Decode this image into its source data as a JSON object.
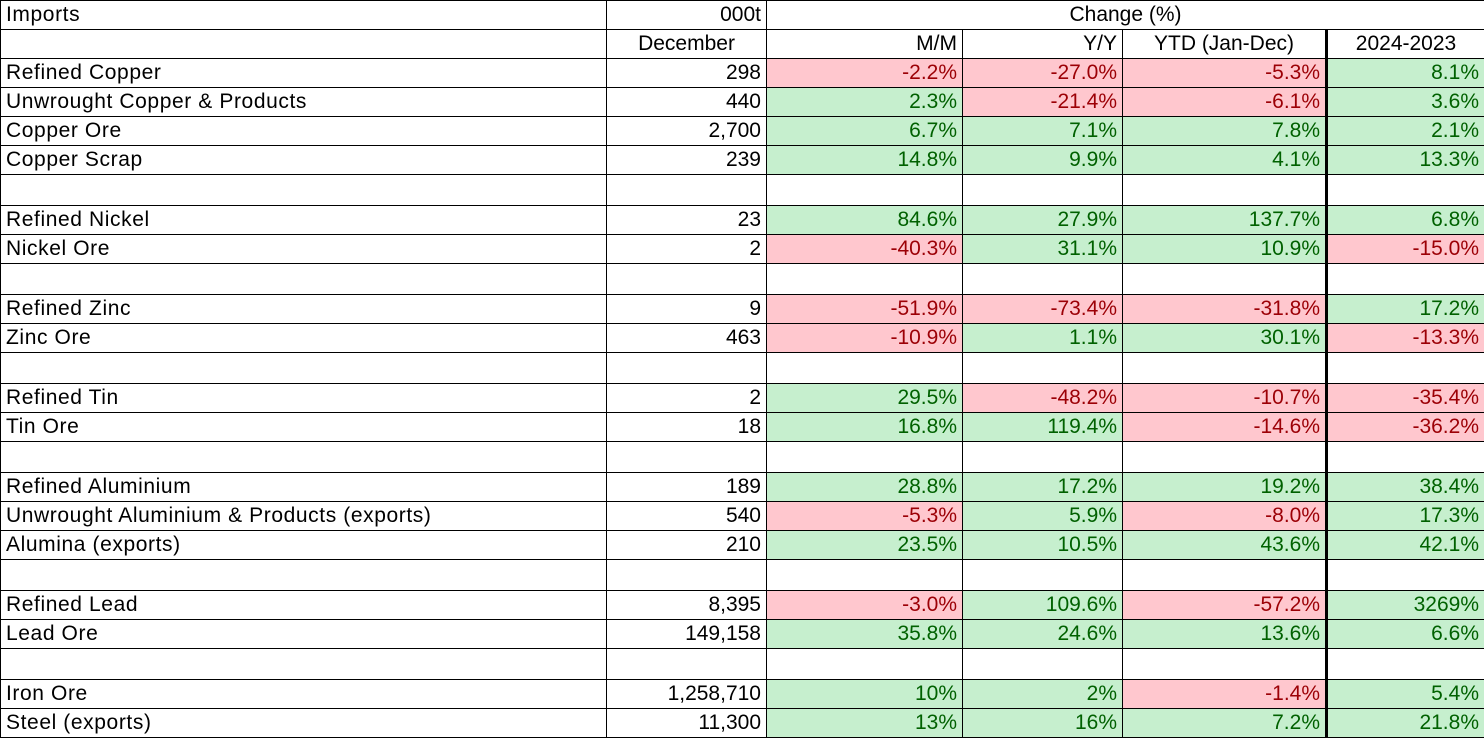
{
  "chart_data": {
    "type": "table",
    "header_row1": {
      "label": "Imports",
      "unit": "000t",
      "change": "Change (%)"
    },
    "header_row2": [
      "",
      "December",
      "M/M",
      "Y/Y",
      "YTD (Jan-Dec)",
      "2024-2023"
    ],
    "columns": [
      "",
      "December",
      "M/M",
      "Y/Y",
      "YTD (Jan-Dec)",
      "2024-2023"
    ],
    "rows": [
      {
        "label": "Refined Copper",
        "december": "298",
        "mm": "-2.2%",
        "yy": "-27.0%",
        "ytd": "-5.3%",
        "y2024_2023": "8.1%"
      },
      {
        "label": "Unwrought Copper & Products",
        "december": "440",
        "mm": "2.3%",
        "yy": "-21.4%",
        "ytd": "-6.1%",
        "y2024_2023": "3.6%"
      },
      {
        "label": "Copper Ore",
        "december": "2,700",
        "mm": "6.7%",
        "yy": "7.1%",
        "ytd": "7.8%",
        "y2024_2023": "2.1%"
      },
      {
        "label": "Copper Scrap",
        "december": "239",
        "mm": "14.8%",
        "yy": "9.9%",
        "ytd": "4.1%",
        "y2024_2023": "13.3%"
      },
      {
        "blank": true
      },
      {
        "label": "Refined Nickel",
        "december": "23",
        "mm": "84.6%",
        "yy": "27.9%",
        "ytd": "137.7%",
        "y2024_2023": "6.8%"
      },
      {
        "label": "Nickel Ore",
        "december": "2",
        "mm": "-40.3%",
        "yy": "31.1%",
        "ytd": "10.9%",
        "y2024_2023": "-15.0%"
      },
      {
        "blank": true
      },
      {
        "label": "Refined Zinc",
        "december": "9",
        "mm": "-51.9%",
        "yy": "-73.4%",
        "ytd": "-31.8%",
        "y2024_2023": "17.2%"
      },
      {
        "label": "Zinc Ore",
        "december": "463",
        "mm": "-10.9%",
        "yy": "1.1%",
        "ytd": "30.1%",
        "y2024_2023": "-13.3%"
      },
      {
        "blank": true
      },
      {
        "label": "Refined Tin",
        "december": "2",
        "mm": "29.5%",
        "yy": "-48.2%",
        "ytd": "-10.7%",
        "y2024_2023": "-35.4%"
      },
      {
        "label": "Tin Ore",
        "december": "18",
        "mm": "16.8%",
        "yy": "119.4%",
        "ytd": "-14.6%",
        "y2024_2023": "-36.2%"
      },
      {
        "blank": true
      },
      {
        "label": "Refined Aluminium",
        "december": "189",
        "mm": "28.8%",
        "yy": "17.2%",
        "ytd": "19.2%",
        "y2024_2023": "38.4%"
      },
      {
        "label": "Unwrought Aluminium & Products (exports)",
        "december": "540",
        "mm": "-5.3%",
        "yy": "5.9%",
        "ytd": "-8.0%",
        "y2024_2023": "17.3%"
      },
      {
        "label": "Alumina (exports)",
        "december": "210",
        "mm": "23.5%",
        "yy": "10.5%",
        "ytd": "43.6%",
        "y2024_2023": "42.1%"
      },
      {
        "blank": true
      },
      {
        "label": "Refined Lead",
        "december": "8,395",
        "mm": "-3.0%",
        "yy": "109.6%",
        "ytd": "-57.2%",
        "y2024_2023": "3269%"
      },
      {
        "label": "Lead Ore",
        "december": "149,158",
        "mm": "35.8%",
        "yy": "24.6%",
        "ytd": "13.6%",
        "y2024_2023": "6.6%"
      },
      {
        "blank": true
      },
      {
        "label": "Iron Ore",
        "december": "1,258,710",
        "mm": "10%",
        "yy": "2%",
        "ytd": "-1.4%",
        "y2024_2023": "5.4%"
      },
      {
        "label": "Steel (exports)",
        "december": "11,300",
        "mm": "13%",
        "yy": "16%",
        "ytd": "7.2%",
        "y2024_2023": "21.8%"
      }
    ],
    "colors": {
      "positive_fill": "#c6efce",
      "positive_text": "#006100",
      "negative_fill": "#ffc7ce",
      "negative_text": "#9c0006",
      "border": "#000000"
    }
  }
}
